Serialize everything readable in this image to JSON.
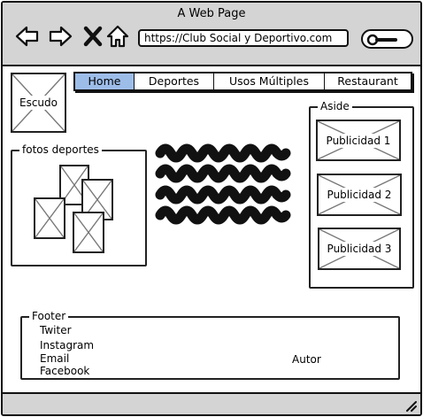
{
  "browser": {
    "title": "A Web Page",
    "url": "https://Club Social y Deportivo.com",
    "icons": [
      "back-arrow-icon",
      "forward-arrow-icon",
      "close-x-icon",
      "home-icon",
      "search-icon",
      "resize-grip-icon"
    ]
  },
  "header": {
    "logo_label": "Escudo"
  },
  "nav": {
    "tabs": [
      {
        "label": "Home",
        "active": true
      },
      {
        "label": "Deportes",
        "active": false
      },
      {
        "label": "Usos Múltiples",
        "active": false
      },
      {
        "label": "Restaurant",
        "active": false
      }
    ]
  },
  "gallery": {
    "label": "fotos deportes"
  },
  "aside": {
    "label": "Aside",
    "ads": [
      "Publicidad 1",
      "Publicidad 2",
      "Publicidad 3"
    ]
  },
  "footer": {
    "label": "Footer",
    "links": [
      "Twiter",
      "Instagram",
      "Email",
      "Facebook"
    ],
    "author": "Autor"
  },
  "colors": {
    "chrome": "#d4d4d4",
    "active_tab": "#9dbde9",
    "stroke": "#111111"
  }
}
